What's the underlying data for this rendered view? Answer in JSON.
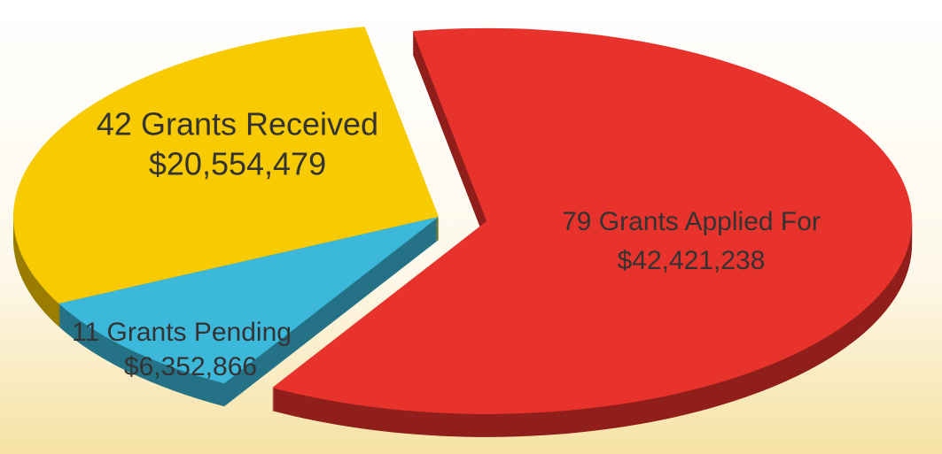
{
  "chart_data": {
    "type": "pie",
    "categories": [
      "79 Grants Applied For",
      "11 Grants Pending",
      "42 Grants Received"
    ],
    "values": [
      42421238,
      6352866,
      20554479
    ],
    "value_labels": [
      "$42,421,238",
      "$6,352,866",
      "$20,554,479"
    ],
    "colors": [
      "#e8322c",
      "#3cb8da",
      "#f8ca02"
    ]
  }
}
